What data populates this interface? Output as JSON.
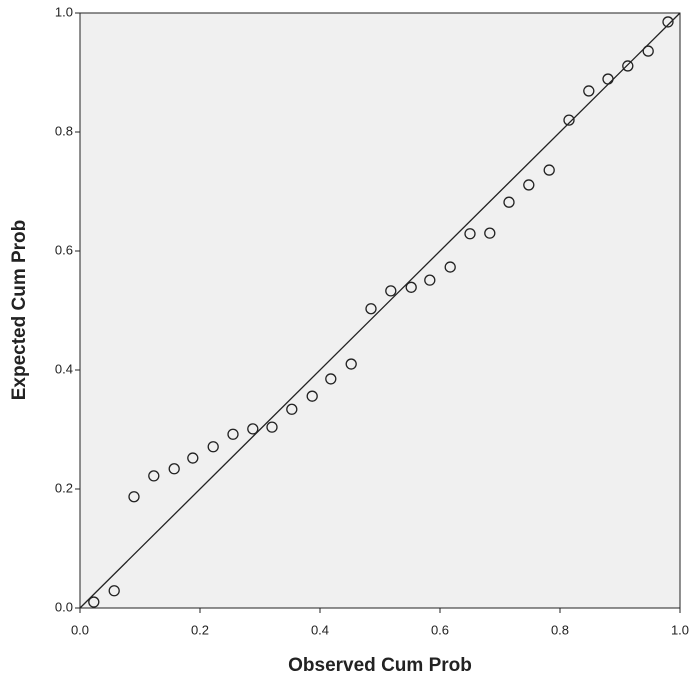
{
  "chart_data": {
    "type": "scatter",
    "x_label": "Observed Cum Prob",
    "y_label": "Expected Cum Prob",
    "x": [
      0.023,
      0.057,
      0.09,
      0.123,
      0.157,
      0.188,
      0.222,
      0.255,
      0.288,
      0.32,
      0.353,
      0.387,
      0.418,
      0.452,
      0.485,
      0.518,
      0.552,
      0.583,
      0.617,
      0.65,
      0.683,
      0.715,
      0.748,
      0.782,
      0.815,
      0.848,
      0.88,
      0.913,
      0.947,
      0.98
    ],
    "values": [
      0.01,
      0.029,
      0.187,
      0.222,
      0.234,
      0.252,
      0.271,
      0.292,
      0.301,
      0.304,
      0.334,
      0.356,
      0.385,
      0.41,
      0.503,
      0.533,
      0.539,
      0.551,
      0.573,
      0.629,
      0.63,
      0.682,
      0.711,
      0.736,
      0.82,
      0.869,
      0.889,
      0.911,
      0.936,
      0.985
    ],
    "color": "#222222",
    "xlim": [
      0,
      1
    ],
    "ylim": [
      0,
      1
    ],
    "xticks": [
      {
        "value": 0,
        "label": "0.0"
      },
      {
        "value": 0.2,
        "label": "0.2"
      },
      {
        "value": 0.4,
        "label": "0.4"
      },
      {
        "value": 0.6,
        "label": "0.6"
      },
      {
        "value": 0.8,
        "label": "0.8"
      },
      {
        "value": 1,
        "label": "1.0"
      }
    ],
    "yticks": [
      {
        "value": 0,
        "label": "0.0"
      },
      {
        "value": 0.2,
        "label": "0.2"
      },
      {
        "value": 0.4,
        "label": "0.4"
      },
      {
        "value": 0.6,
        "label": "0.6"
      },
      {
        "value": 0.8,
        "label": "0.8"
      },
      {
        "value": 1,
        "label": "1.0"
      }
    ],
    "grid": false
  }
}
